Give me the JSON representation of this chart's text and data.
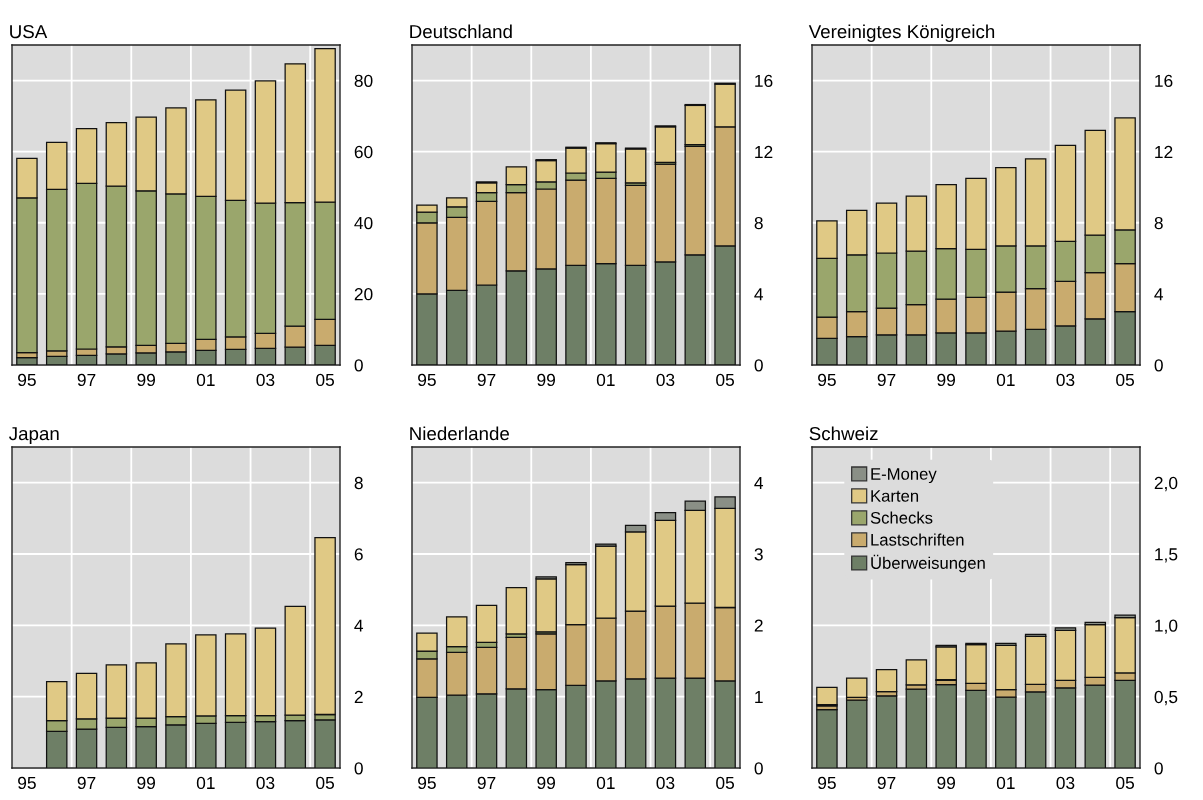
{
  "chart_data": [
    {
      "type": "bar",
      "stacked": true,
      "title": "USA",
      "categories": [
        "95",
        null,
        "97",
        null,
        "99",
        null,
        "01",
        null,
        "03",
        null,
        "05"
      ],
      "ylim": [
        0,
        90
      ],
      "yticks": [
        0,
        20,
        40,
        60,
        80
      ],
      "grid": true,
      "legend": false,
      "series": [
        {
          "color": "#6e7f66",
          "values": [
            2.1,
            2.4,
            2.7,
            3.1,
            3.4,
            3.7,
            4.1,
            4.4,
            4.7,
            5.0,
            5.5
          ]
        },
        {
          "color": "#c9ab6e",
          "values": [
            1.4,
            1.6,
            1.8,
            2.0,
            2.1,
            2.4,
            3.1,
            3.5,
            4.2,
            5.9,
            7.3
          ]
        },
        {
          "color": "#9aa66c",
          "values": [
            43.5,
            45.4,
            46.6,
            45.2,
            43.5,
            42.0,
            40.2,
            38.4,
            36.6,
            34.8,
            33.0
          ]
        },
        {
          "color": "#e0c985",
          "values": [
            11.1,
            13.2,
            15.4,
            17.9,
            20.7,
            24.2,
            27.2,
            31.0,
            34.4,
            39.0,
            43.2
          ]
        }
      ]
    },
    {
      "type": "bar",
      "stacked": true,
      "title": "Deutschland",
      "categories": [
        "95",
        null,
        "97",
        null,
        "99",
        null,
        "01",
        null,
        "03",
        null,
        "05"
      ],
      "ylim": [
        0,
        18
      ],
      "yticks": [
        0,
        4,
        8,
        12,
        16
      ],
      "grid": true,
      "legend": false,
      "series": [
        {
          "color": "#6e7f66",
          "values": [
            4.0,
            4.2,
            4.5,
            5.3,
            5.4,
            5.6,
            5.7,
            5.6,
            5.8,
            6.2,
            6.7
          ]
        },
        {
          "color": "#c9ab6e",
          "values": [
            4.0,
            4.1,
            4.7,
            4.4,
            4.5,
            4.8,
            4.8,
            4.5,
            5.5,
            6.1,
            6.7
          ]
        },
        {
          "color": "#9aa66c",
          "values": [
            0.6,
            0.6,
            0.5,
            0.45,
            0.4,
            0.4,
            0.35,
            0.15,
            0.1,
            0.1,
            null
          ]
        },
        {
          "color": "#e0c985",
          "values": [
            0.4,
            0.5,
            0.55,
            1.0,
            1.2,
            1.4,
            1.6,
            1.9,
            2.0,
            2.2,
            2.4
          ]
        },
        {
          "color": "#8a8f86",
          "values": [
            null,
            null,
            0.05,
            null,
            0.05,
            0.05,
            0.05,
            0.05,
            0.05,
            0.05,
            0.05
          ]
        }
      ]
    },
    {
      "type": "bar",
      "stacked": true,
      "title": "Vereinigtes Königreich",
      "categories": [
        "95",
        null,
        "97",
        null,
        "99",
        null,
        "01",
        null,
        "03",
        null,
        "05"
      ],
      "ylim": [
        0,
        18
      ],
      "yticks": [
        0,
        4,
        8,
        12,
        16
      ],
      "grid": true,
      "legend": false,
      "series": [
        {
          "color": "#6e7f66",
          "values": [
            1.5,
            1.6,
            1.7,
            1.7,
            1.8,
            1.8,
            1.9,
            2.0,
            2.2,
            2.6,
            3.0
          ]
        },
        {
          "color": "#c9ab6e",
          "values": [
            1.2,
            1.4,
            1.5,
            1.7,
            1.9,
            2.0,
            2.2,
            2.3,
            2.5,
            2.6,
            2.7
          ]
        },
        {
          "color": "#9aa66c",
          "values": [
            3.3,
            3.2,
            3.1,
            3.0,
            2.85,
            2.7,
            2.6,
            2.4,
            2.25,
            2.1,
            1.9
          ]
        },
        {
          "color": "#e0c985",
          "values": [
            2.1,
            2.5,
            2.8,
            3.1,
            3.6,
            4.0,
            4.4,
            4.9,
            5.4,
            5.9,
            6.3
          ]
        }
      ]
    },
    {
      "type": "bar",
      "stacked": true,
      "title": "Japan",
      "categories": [
        "95",
        null,
        "97",
        null,
        "99",
        null,
        "01",
        null,
        "03",
        null,
        "05"
      ],
      "ylim": [
        0,
        9
      ],
      "yticks": [
        0,
        2,
        4,
        6,
        8
      ],
      "grid": true,
      "legend": false,
      "series": [
        {
          "color": "#6e7f66",
          "values": [
            null,
            1.03,
            1.09,
            1.14,
            1.16,
            1.21,
            1.25,
            1.28,
            1.3,
            1.33,
            1.35
          ]
        },
        {
          "color": "#9aa66c",
          "values": [
            null,
            0.3,
            0.29,
            0.26,
            0.24,
            0.23,
            0.21,
            0.19,
            0.17,
            0.15,
            0.15
          ]
        },
        {
          "color": "#e0c985",
          "values": [
            null,
            1.09,
            1.27,
            1.49,
            1.55,
            2.04,
            2.27,
            2.29,
            2.45,
            3.05,
            4.96
          ]
        }
      ]
    },
    {
      "type": "bar",
      "stacked": true,
      "title": "Niederlande",
      "categories": [
        "95",
        null,
        "97",
        null,
        "99",
        null,
        "01",
        null,
        "03",
        null,
        "05"
      ],
      "ylim": [
        0,
        4.5
      ],
      "yticks": [
        0,
        1,
        2,
        3,
        4
      ],
      "grid": true,
      "legend": false,
      "series": [
        {
          "color": "#6e7f66",
          "values": [
            0.99,
            1.02,
            1.04,
            1.11,
            1.1,
            1.16,
            1.22,
            1.25,
            1.26,
            1.26,
            1.22
          ]
        },
        {
          "color": "#c9ab6e",
          "values": [
            0.54,
            0.6,
            0.65,
            0.72,
            0.78,
            0.85,
            0.88,
            0.95,
            1.01,
            1.05,
            1.03
          ]
        },
        {
          "color": "#9aa66c",
          "values": [
            0.11,
            0.08,
            0.07,
            0.05,
            0.03,
            null,
            null,
            null,
            null,
            null,
            null
          ]
        },
        {
          "color": "#e0c985",
          "values": [
            0.25,
            0.42,
            0.52,
            0.65,
            0.74,
            0.84,
            1.01,
            1.11,
            1.2,
            1.3,
            1.39
          ]
        },
        {
          "color": "#8a8f86",
          "values": [
            null,
            null,
            null,
            null,
            0.03,
            0.03,
            0.03,
            0.09,
            0.11,
            0.13,
            0.16
          ]
        }
      ]
    },
    {
      "type": "bar",
      "stacked": true,
      "title": "Schweiz",
      "categories": [
        "95",
        null,
        "97",
        null,
        "99",
        null,
        "01",
        null,
        "03",
        null,
        "05"
      ],
      "ylim": [
        0,
        2.25
      ],
      "yticks": [
        0,
        {
          "value": 0.5,
          "label": "0,5"
        },
        {
          "value": 1.0,
          "label": "1,0"
        },
        {
          "value": 1.5,
          "label": "1,5"
        },
        {
          "value": 2.0,
          "label": "2,0"
        }
      ],
      "grid": true,
      "legend": "top left",
      "series": [
        {
          "name": "Überweisungen",
          "color": "#6e7f66",
          "values": [
            0.41,
            0.475,
            0.506,
            0.553,
            0.584,
            0.544,
            0.496,
            0.534,
            0.562,
            0.581,
            0.614
          ]
        },
        {
          "name": "Lastschriften",
          "color": "#c9ab6e",
          "values": [
            0.025,
            0.02,
            0.03,
            0.03,
            0.03,
            0.05,
            0.054,
            0.052,
            0.052,
            0.054,
            0.052
          ]
        },
        {
          "name": "Schecks",
          "color": "#9aa66c",
          "values": [
            0.01,
            null,
            null,
            null,
            0.005,
            null,
            null,
            null,
            null,
            null,
            null
          ]
        },
        {
          "name": "Karten",
          "color": "#e0c985",
          "values": [
            0.12,
            0.135,
            0.153,
            0.175,
            0.23,
            0.27,
            0.31,
            0.336,
            0.35,
            0.37,
            0.388
          ]
        },
        {
          "name": "E-Money",
          "color": "#8a8f86",
          "values": [
            null,
            null,
            null,
            null,
            0.01,
            0.01,
            0.014,
            0.014,
            0.019,
            0.016,
            0.017
          ]
        }
      ]
    }
  ]
}
